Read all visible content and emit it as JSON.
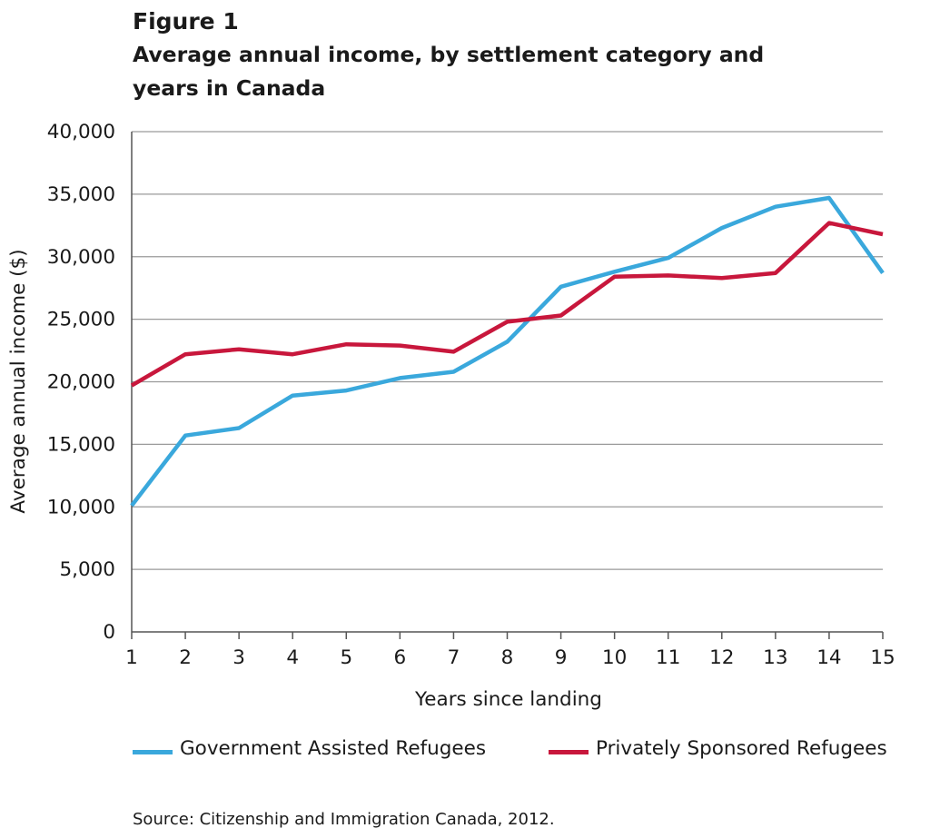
{
  "figure_label": "Figure 1",
  "title": "Average annual income, by settlement category and years in Canada",
  "source": "Source: Citizenship and Immigration Canada, 2012.",
  "colors": {
    "government": "#3aa8dc",
    "private": "#c8173c",
    "grid": "#9a9a9a",
    "axis": "#555555"
  },
  "chart_data": {
    "type": "line",
    "xlabel": "Years since landing",
    "ylabel": "Average annual income ($)",
    "x": [
      1,
      2,
      3,
      4,
      5,
      6,
      7,
      8,
      9,
      10,
      11,
      12,
      13,
      14,
      15
    ],
    "ylim": [
      0,
      40000
    ],
    "yticks": [
      0,
      5000,
      10000,
      15000,
      20000,
      25000,
      30000,
      35000,
      40000
    ],
    "ytick_labels": [
      "0",
      "5,000",
      "10,000",
      "15,000",
      "20,000",
      "25,000",
      "30,000",
      "35,000",
      "40,000"
    ],
    "grid": true,
    "legend_position": "bottom",
    "series": [
      {
        "name": "Government Assisted Refugees",
        "color": "#3aa8dc",
        "values": [
          10100,
          15700,
          16300,
          18900,
          19300,
          20300,
          20800,
          23200,
          27600,
          28800,
          29900,
          32300,
          34000,
          34700,
          28700
        ]
      },
      {
        "name": "Privately Sponsored Refugees",
        "color": "#c8173c",
        "values": [
          19700,
          22200,
          22600,
          22200,
          23000,
          22900,
          22400,
          24800,
          25300,
          28400,
          28500,
          28300,
          28700,
          32700,
          31800
        ]
      }
    ]
  }
}
